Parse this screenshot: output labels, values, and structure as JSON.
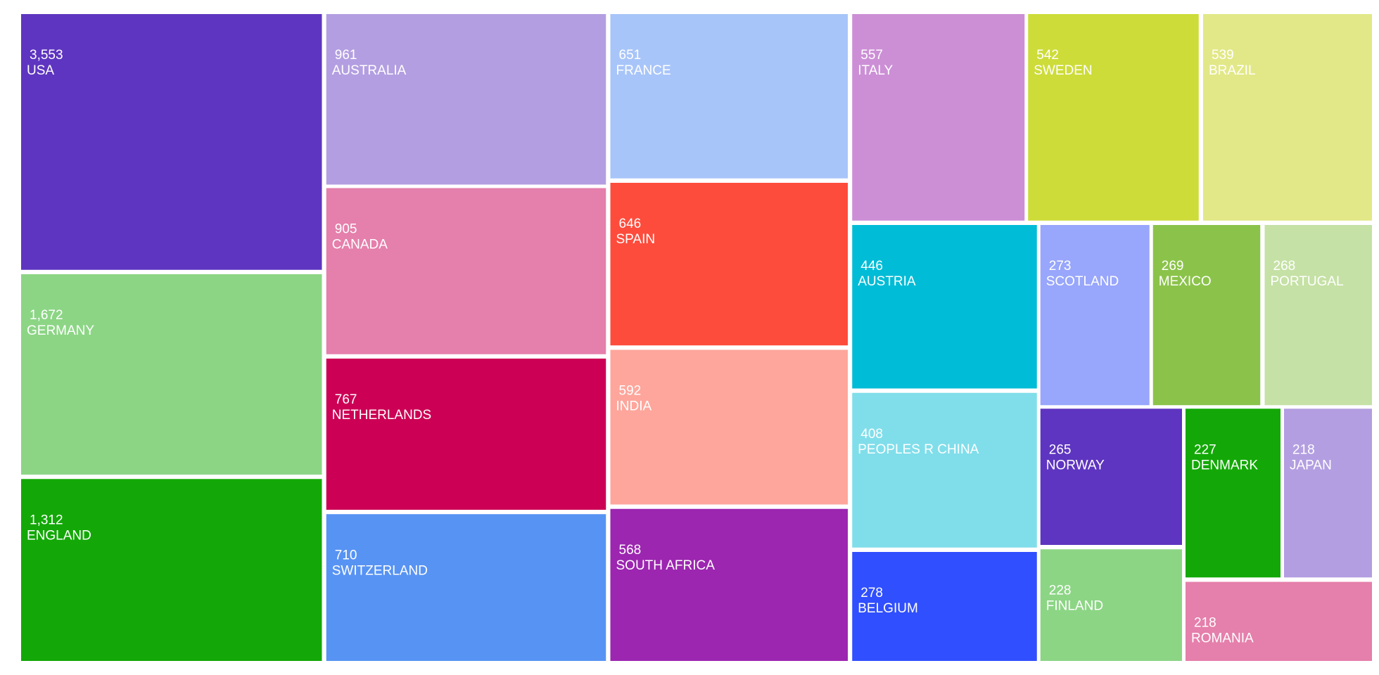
{
  "chart_data": {
    "type": "treemap",
    "categories": [
      "USA",
      "GERMANY",
      "ENGLAND",
      "AUSTRALIA",
      "CANADA",
      "NETHERLANDS",
      "SWITZERLAND",
      "FRANCE",
      "SPAIN",
      "INDIA",
      "SOUTH AFRICA",
      "ITALY",
      "SWEDEN",
      "BRAZIL",
      "AUSTRIA",
      "PEOPLES R CHINA",
      "BELGIUM",
      "SCOTLAND",
      "MEXICO",
      "PORTUGAL",
      "NORWAY",
      "FINLAND",
      "DENMARK",
      "JAPAN",
      "ROMANIA"
    ],
    "values": [
      3553,
      1672,
      1312,
      961,
      905,
      767,
      710,
      651,
      646,
      592,
      568,
      557,
      542,
      539,
      446,
      408,
      278,
      273,
      269,
      268,
      265,
      228,
      227,
      218,
      218
    ],
    "value_labels": [
      "3,553",
      "1,672",
      "1,312",
      "961",
      "905",
      "767",
      "710",
      "651",
      "646",
      "592",
      "568",
      "557",
      "542",
      "539",
      "446",
      "408",
      "278",
      "273",
      "269",
      "268",
      "265",
      "228",
      "227",
      "218",
      "218"
    ],
    "colors": [
      "#5e35c0",
      "#8cd585",
      "#13a807",
      "#b39ee1",
      "#e57fab",
      "#cc0055",
      "#5793f3",
      "#a8c5f9",
      "#fe4c3c",
      "#fea69c",
      "#9c26b0",
      "#cc8fd6",
      "#cddc39",
      "#e2e887",
      "#00bcd6",
      "#80deea",
      "#304ffe",
      "#98a6fb",
      "#8bc34a",
      "#c5e1a5",
      "#5e35c0",
      "#8cd585",
      "#13a807",
      "#b39ee1",
      "#e57fab"
    ]
  }
}
